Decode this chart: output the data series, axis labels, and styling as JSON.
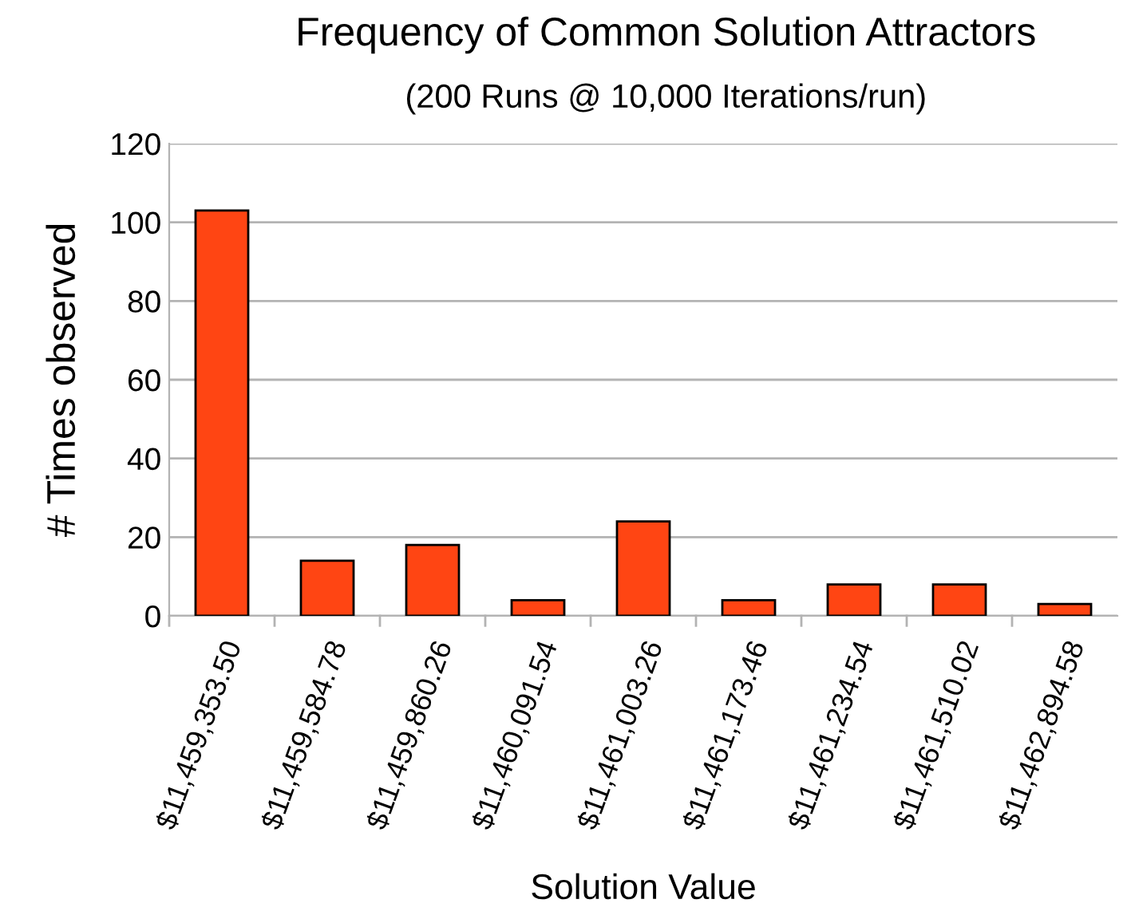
{
  "chart_data": {
    "type": "bar",
    "title": "Frequency of Common Solution Attractors",
    "subtitle": "(200 Runs @ 10,000 Iterations/run)",
    "xlabel": "Solution Value",
    "ylabel": "# Times observed",
    "categories": [
      "$11,459,353.50",
      "$11,459,584.78",
      "$11,459,860.26",
      "$11,460,091.54",
      "$11,461,003.26",
      "$11,461,173.46",
      "$11,461,234.54",
      "$11,461,510.02",
      "$11,462,894.58"
    ],
    "values": [
      103,
      14,
      18,
      4,
      24,
      4,
      8,
      8,
      3
    ],
    "color": "#ff4513",
    "ylim": [
      0,
      120
    ],
    "yticks": [
      0,
      20,
      40,
      60,
      80,
      100,
      120
    ],
    "grid": "y"
  }
}
